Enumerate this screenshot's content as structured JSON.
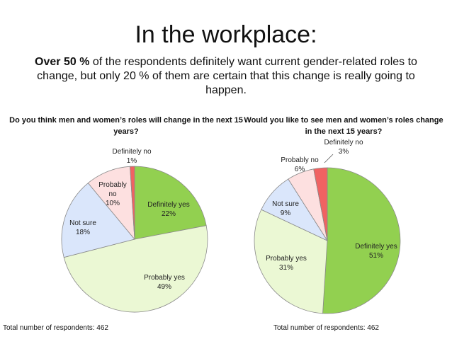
{
  "slide": {
    "title": "In the workplace:",
    "subtitle_bold": "Over 50 %",
    "subtitle_rest": " of the respondents definitely want current gender-related roles to change, but only 20 % of them are certain that this change is really going to happen."
  },
  "colors": {
    "definitely_yes": "#92d050",
    "probably_yes": "#ebf8d4",
    "not_sure": "#dae6fb",
    "probably_no": "#fde0e0",
    "definitely_no": "#f06262"
  },
  "chart_data": [
    {
      "type": "pie",
      "title": "Do you think men and women’s roles will change in the next 15 years?",
      "footer": "Total number of respondents: 462",
      "slices": [
        {
          "label": "Definitely yes",
          "value": 22,
          "value_label": "22%"
        },
        {
          "label": "Probably yes",
          "value": 49,
          "value_label": "49%"
        },
        {
          "label": "Not sure",
          "value": 18,
          "value_label": "18%"
        },
        {
          "label": "Probably no",
          "value": 10,
          "value_label": "10%"
        },
        {
          "label": "Definitely no",
          "value": 1,
          "value_label": "1%"
        }
      ]
    },
    {
      "type": "pie",
      "title": "Would you like to see men and women’s roles change in the next 15 years?",
      "footer": "Total number of respondents: 462",
      "slices": [
        {
          "label": "Definitely yes",
          "value": 51,
          "value_label": "51%"
        },
        {
          "label": "Probably yes",
          "value": 31,
          "value_label": "31%"
        },
        {
          "label": "Not sure",
          "value": 9,
          "value_label": "9%"
        },
        {
          "label": "Probably no",
          "value": 6,
          "value_label": "6%"
        },
        {
          "label": "Definitely no",
          "value": 3,
          "value_label": "3%"
        }
      ]
    }
  ]
}
